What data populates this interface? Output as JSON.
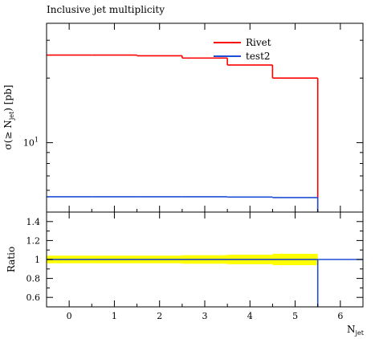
{
  "title": "Inclusive jet multiplicity",
  "chart_data": [
    {
      "type": "line",
      "title": "Inclusive jet multiplicity",
      "ylabel": "σ(≥ Nⱼₑₜ) [pb]",
      "ylabel_main": "σ(≥ N",
      "ylabel_sub": "jet",
      "ylabel_tail": ") [pb]",
      "yscale": "log",
      "ylim": [
        4.75,
        36
      ],
      "ytick_labels": [
        {
          "base": "10",
          "exp": "1",
          "value": 10
        }
      ],
      "xlim": [
        -0.5,
        6.5
      ],
      "step_edges": [
        -0.5,
        0.5,
        1.5,
        2.5,
        3.5,
        4.5,
        5.5
      ],
      "series": [
        {
          "name": "Rivet",
          "color": "#ff0000",
          "values": [
            25.6,
            25.6,
            25.4,
            24.8,
            23.0,
            20.0
          ]
        },
        {
          "name": "test2",
          "color": "#1f4fd6",
          "values": [
            5.6,
            5.6,
            5.6,
            5.6,
            5.58,
            5.55
          ]
        }
      ],
      "legend": "top-right",
      "grid": false
    },
    {
      "type": "line",
      "ylabel": "Ratio",
      "xlabel": "N_jet",
      "xlabel_main": "N",
      "xlabel_sub": "jet",
      "ylim": [
        0.5,
        1.5
      ],
      "yticks": [
        0.6,
        0.8,
        1,
        1.2,
        1.4
      ],
      "ytick_labels": [
        "0.6",
        "0.8",
        "1",
        "1.2",
        "1.4"
      ],
      "xticks": [
        0,
        1,
        2,
        3,
        4,
        5,
        6
      ],
      "xtick_labels": [
        "0",
        "1",
        "2",
        "3",
        "4",
        "5",
        "6"
      ],
      "xlim": [
        -0.5,
        6.5
      ],
      "reference_line": 1,
      "band": {
        "color": "#ffff00",
        "edges": [
          -0.5,
          0.5,
          1.5,
          2.5,
          3.5,
          4.5,
          5.5
        ],
        "low": [
          0.96,
          0.96,
          0.96,
          0.955,
          0.95,
          0.94
        ],
        "high": [
          1.04,
          1.04,
          1.04,
          1.045,
          1.05,
          1.06
        ]
      },
      "series": [
        {
          "name": "test2",
          "color": "#1f4fd6",
          "edges": [
            -0.5,
            0.5,
            1.5,
            2.5,
            3.5,
            4.5,
            5.5,
            6.5
          ],
          "values": [
            1.0,
            1.0,
            1.0,
            1.0,
            1.0,
            1.0,
            1.0
          ],
          "drop_at": 5.5
        }
      ],
      "grid": false
    }
  ]
}
